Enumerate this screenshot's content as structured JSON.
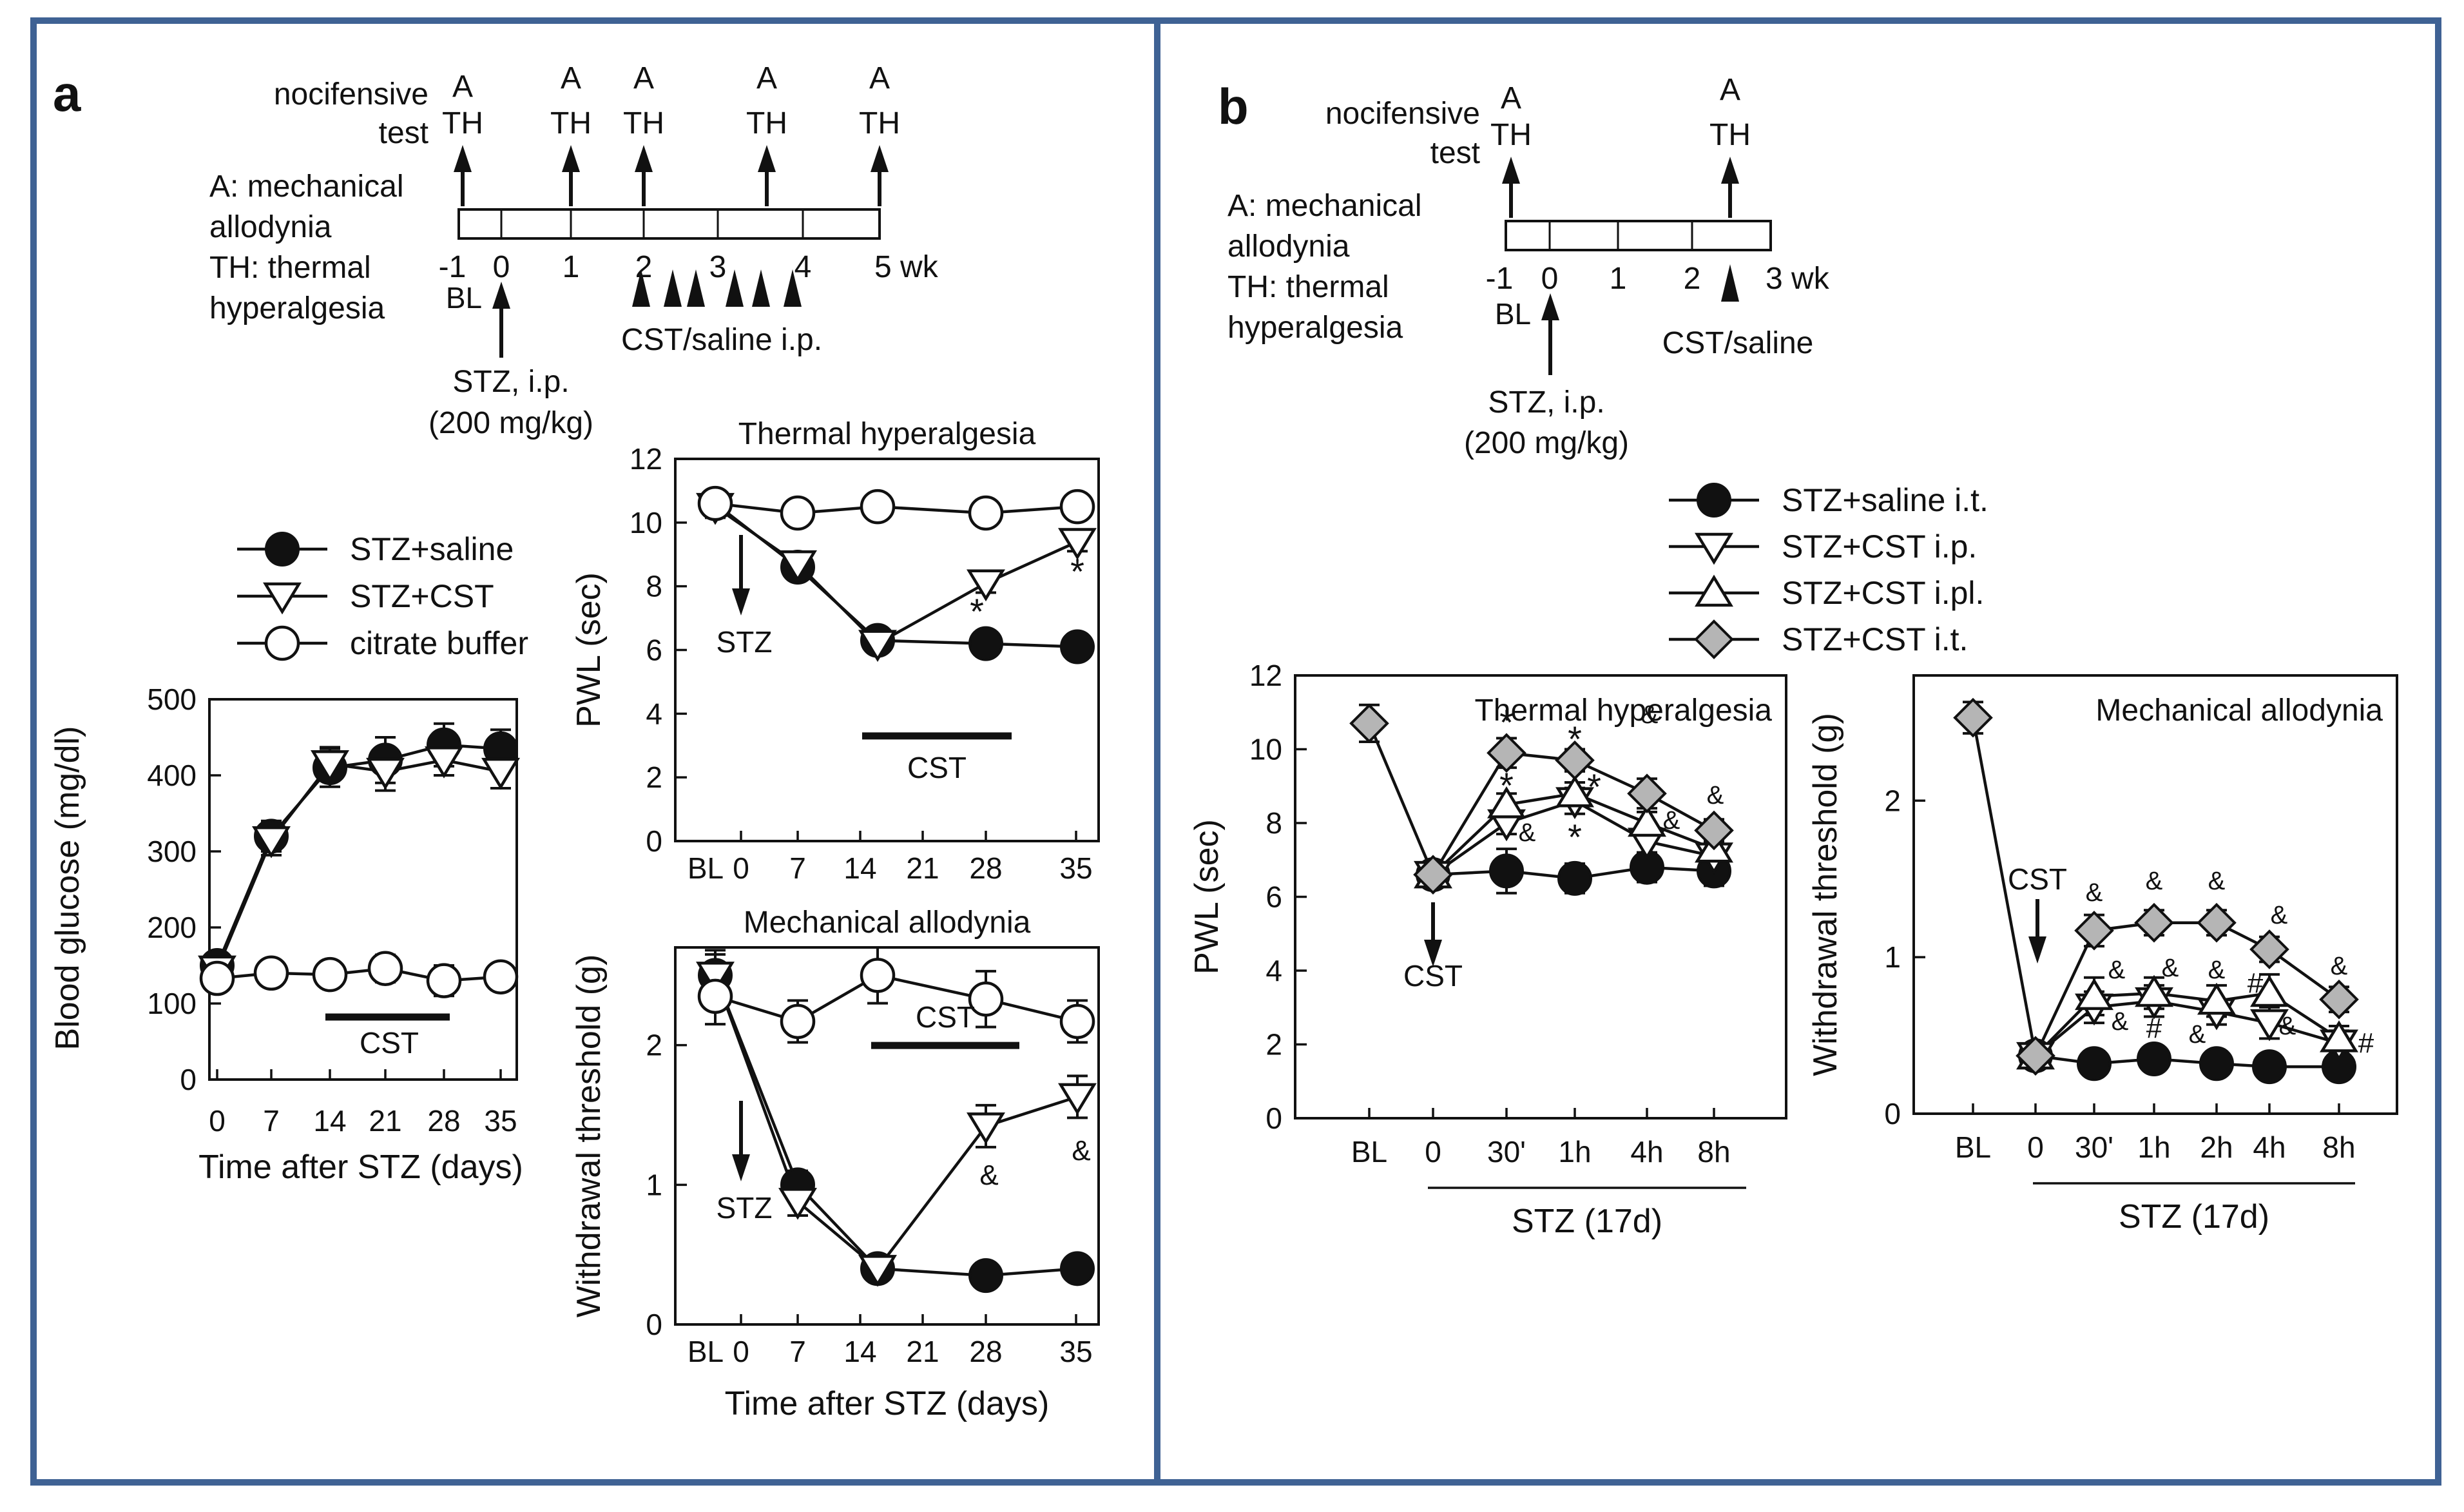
{
  "colors": {
    "frame": "#3f6294",
    "ink": "#111111",
    "filled": "#111111",
    "open": "#ffffff",
    "gray": "#b5b5b5"
  },
  "panel_a": {
    "label": "a",
    "timeline": {
      "nocifensive_line1": "nocifensive",
      "nocifensive_line2": "test",
      "legend_lines": [
        "A: mechanical",
        "allodynia",
        "TH: thermal",
        "hyperalgesia"
      ],
      "ticks": [
        "-1",
        "0",
        "1",
        "2",
        "3",
        "4",
        "5 wk"
      ],
      "bl": "BL",
      "stz_line1": "STZ, i.p.",
      "stz_line2": "(200 mg/kg)",
      "cst": "CST/saline i.p.",
      "arrow_a": "A",
      "arrow_th": "TH"
    },
    "legend": [
      "STZ+saline",
      "STZ+CST",
      "citrate buffer"
    ],
    "cst_label": "CST",
    "stz_label": "STZ"
  },
  "panel_b": {
    "label": "b",
    "timeline": {
      "nocifensive_line1": "nocifensive",
      "nocifensive_line2": "test",
      "legend_lines": [
        "A: mechanical",
        "allodynia",
        "TH: thermal",
        "hyperalgesia"
      ],
      "ticks": [
        "-1",
        "0",
        "1",
        "2",
        "3 wk"
      ],
      "bl": "BL",
      "stz_line1": "STZ, i.p.",
      "stz_line2": "(200 mg/kg)",
      "cst": "CST/saline",
      "arrow_a": "A",
      "arrow_th": "TH"
    },
    "legend": [
      "STZ+saline i.t.",
      "STZ+CST i.p.",
      "STZ+CST i.pl.",
      "STZ+CST i.t."
    ],
    "cst_label": "CST",
    "group_label": "STZ (17d)"
  },
  "chart_data": [
    {
      "id": "glucose",
      "type": "line",
      "xlabel": "Time after STZ (days)",
      "ylabel": "Blood glucose (mg/dl)",
      "categories": [
        "0",
        "7",
        "14",
        "21",
        "28",
        "35"
      ],
      "x": [
        0,
        7,
        14,
        21,
        28,
        35
      ],
      "yticks": [
        0,
        100,
        200,
        300,
        400,
        500
      ],
      "ylim": [
        0,
        500
      ],
      "annotation": "CST",
      "series": [
        {
          "name": "STZ+saline",
          "marker": "filled-circle",
          "values": [
            150,
            320,
            410,
            420,
            440,
            435
          ],
          "err": [
            12,
            20,
            25,
            30,
            28,
            25
          ]
        },
        {
          "name": "STZ+CST",
          "marker": "open-down-triangle",
          "values": [
            145,
            315,
            415,
            405,
            420,
            405
          ],
          "err": [
            12,
            20,
            22,
            25,
            20,
            22
          ]
        },
        {
          "name": "citrate buffer",
          "marker": "open-circle",
          "values": [
            133,
            140,
            138,
            146,
            130,
            135
          ],
          "err": [
            15,
            10,
            10,
            18,
            20,
            15
          ]
        }
      ]
    },
    {
      "id": "thermal_a",
      "type": "line",
      "title": "Thermal hyperalgesia",
      "xlabel": "",
      "ylabel": "PWL (sec)",
      "categories": [
        "BL",
        "0",
        "7",
        "14",
        "21",
        "28",
        "35"
      ],
      "x": [
        -3,
        7,
        14,
        25,
        35
      ],
      "yticks": [
        0,
        2,
        4,
        6,
        8,
        10,
        12
      ],
      "ylim": [
        0,
        12
      ],
      "annotations": [
        "STZ",
        "CST",
        "*",
        "*"
      ],
      "series": [
        {
          "name": "STZ+saline",
          "marker": "filled-circle",
          "values": [
            10.6,
            8.6,
            6.3,
            6.2,
            6.1
          ],
          "err": [
            0.35,
            0.3,
            0.2,
            0.2,
            0.15
          ]
        },
        {
          "name": "STZ+CST",
          "marker": "open-down-triangle",
          "values": [
            10.5,
            8.7,
            6.2,
            8.1,
            9.4
          ],
          "err": [
            0.35,
            0.3,
            0.2,
            0.3,
            0.3
          ]
        },
        {
          "name": "citrate buffer",
          "marker": "open-circle",
          "values": [
            10.6,
            10.3,
            10.5,
            10.3,
            10.5
          ],
          "err": [
            0.35,
            0.3,
            0.3,
            0.25,
            0.3
          ]
        }
      ]
    },
    {
      "id": "mech_a",
      "type": "line",
      "title": "Mechanical allodynia",
      "xlabel": "Time after STZ (days)",
      "ylabel": "Withdrawal threshold (g)",
      "categories": [
        "BL",
        "0",
        "7",
        "14",
        "21",
        "28",
        "35"
      ],
      "x": [
        -3,
        7,
        14,
        25,
        35
      ],
      "yticks": [
        0,
        1,
        2
      ],
      "ylim": [
        0,
        2.7
      ],
      "annotations": [
        "STZ",
        "CST",
        "&",
        "&"
      ],
      "series": [
        {
          "name": "STZ+saline",
          "marker": "filled-circle",
          "values": [
            2.5,
            1.0,
            0.4,
            0.35,
            0.4
          ],
          "err": [
            0.18,
            0.1,
            0.06,
            0.06,
            0.08
          ]
        },
        {
          "name": "STZ+CST",
          "marker": "open-down-triangle",
          "values": [
            2.5,
            0.88,
            0.4,
            1.42,
            1.63
          ],
          "err": [
            0.15,
            0.1,
            0.06,
            0.15,
            0.15
          ]
        },
        {
          "name": "citrate buffer",
          "marker": "open-circle",
          "values": [
            2.35,
            2.17,
            2.5,
            2.33,
            2.17
          ],
          "err": [
            0.2,
            0.15,
            0.2,
            0.2,
            0.15
          ]
        }
      ]
    },
    {
      "id": "thermal_b",
      "type": "line",
      "title": "Thermal hyperalgesia",
      "xlabel": "STZ (17d)",
      "ylabel": "PWL (sec)",
      "categories": [
        "BL",
        "0",
        "30'",
        "1h",
        "4h",
        "8h"
      ],
      "yticks": [
        0,
        2,
        4,
        6,
        8,
        10,
        12
      ],
      "ylim": [
        0,
        12
      ],
      "annotations": [
        "CST",
        "*",
        "*",
        "*",
        "*",
        "*",
        "&",
        "&",
        "&",
        "&"
      ],
      "series": [
        {
          "name": "STZ+saline i.t.",
          "marker": "filled-circle",
          "values": [
            null,
            6.6,
            6.7,
            6.5,
            6.8,
            6.7
          ],
          "err": [
            0,
            0.3,
            0.6,
            0.4,
            0.4,
            0.4
          ]
        },
        {
          "name": "STZ+CST i.p.",
          "marker": "open-down-triangle",
          "values": [
            null,
            6.6,
            8.0,
            8.6,
            7.5,
            7.1
          ],
          "err": [
            0,
            0.3,
            0.3,
            0.35,
            0.3,
            0.3
          ]
        },
        {
          "name": "STZ+CST i.pl.",
          "marker": "open-up-triangle",
          "values": [
            null,
            6.6,
            8.5,
            8.8,
            8.0,
            7.3
          ],
          "err": [
            0,
            0.3,
            0.3,
            0.3,
            0.3,
            0.3
          ]
        },
        {
          "name": "STZ+CST i.t.",
          "marker": "gray-diamond",
          "values": [
            10.7,
            6.6,
            9.9,
            9.7,
            8.8,
            7.8
          ],
          "err": [
            0.5,
            0.3,
            0.4,
            0.3,
            0.4,
            0.3
          ]
        }
      ]
    },
    {
      "id": "mech_b",
      "type": "line",
      "title": "Mechanical allodynia",
      "xlabel": "STZ (17d)",
      "ylabel": "Withdrawal threshold (g)",
      "categories": [
        "BL",
        "0",
        "30'",
        "1h",
        "2h",
        "4h",
        "8h"
      ],
      "yticks": [
        0,
        1,
        2
      ],
      "ylim": [
        0,
        2.8
      ],
      "annotations": [
        "CST",
        "&",
        "&",
        "&",
        "&",
        "&",
        "&",
        "&",
        "&",
        "&",
        "&",
        "&",
        "#",
        "#",
        "#"
      ],
      "series": [
        {
          "name": "STZ+saline i.t.",
          "marker": "filled-circle",
          "values": [
            null,
            0.37,
            0.32,
            0.35,
            0.32,
            0.3,
            0.3
          ],
          "err": [
            0,
            0.03,
            0.06,
            0.06,
            0.04,
            0.06,
            0.06
          ]
        },
        {
          "name": "STZ+CST i.p.",
          "marker": "open-down-triangle",
          "values": [
            null,
            0.37,
            0.68,
            0.72,
            0.65,
            0.58,
            0.45
          ],
          "err": [
            0,
            0.03,
            0.1,
            0.1,
            0.08,
            0.1,
            0.08
          ]
        },
        {
          "name": "STZ+CST i.pl.",
          "marker": "open-up-triangle",
          "values": [
            null,
            0.37,
            0.75,
            0.77,
            0.72,
            0.77,
            0.48
          ],
          "err": [
            0,
            0.03,
            0.12,
            0.1,
            0.1,
            0.12,
            0.08
          ]
        },
        {
          "name": "STZ+CST i.t.",
          "marker": "gray-diamond",
          "values": [
            2.53,
            0.37,
            1.17,
            1.22,
            1.22,
            1.05,
            0.73
          ],
          "err": [
            0.1,
            0.03,
            0.1,
            0.08,
            0.08,
            0.08,
            0.08
          ]
        }
      ]
    }
  ]
}
